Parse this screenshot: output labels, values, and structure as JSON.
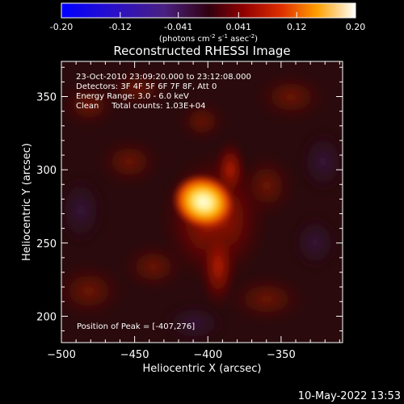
{
  "colorbar": {
    "ticks": [
      "-0.20",
      "-0.12",
      "-0.041",
      "0.041",
      "0.12",
      "0.20"
    ],
    "tick_values": [
      -0.2,
      -0.12,
      -0.041,
      0.041,
      0.12,
      0.2
    ],
    "range": [
      -0.2,
      0.2
    ],
    "units_prefix": "(photons cm",
    "units_exp1": "-2",
    "units_mid": " s",
    "units_exp2": "-1",
    "units_suffix": " asec",
    "units_exp3": "-2",
    "units_close": ")"
  },
  "plot": {
    "title": "Reconstructed RHESSI Image",
    "xlabel": "Heliocentric X (arcsec)",
    "ylabel": "Heliocentric Y (arcsec)",
    "info_lines": [
      "23-Oct-2010 23:09:20.000 to 23:12:08.000",
      "Detectors: 3F 4F 5F 6F 7F 8F, Att 0",
      "Energy Range: 3.0 - 6.0 keV",
      "Clean     Total counts: 1.03E+04"
    ],
    "peak_text": "Position of Peak = [-407,276]"
  },
  "chart_data": {
    "type": "heatmap",
    "title": "Reconstructed RHESSI Image",
    "xlabel": "Heliocentric X (arcsec)",
    "ylabel": "Heliocentric Y (arcsec)",
    "xlim": [
      -500,
      -308
    ],
    "ylim": [
      182,
      374
    ],
    "x_ticks": [
      -500,
      -450,
      -400,
      -350
    ],
    "x_tick_labels": [
      "−500",
      "−450",
      "−400",
      "−350"
    ],
    "y_ticks": [
      200,
      250,
      300,
      350
    ],
    "y_tick_labels": [
      "200",
      "250",
      "300",
      "350"
    ],
    "peak": {
      "x": -407,
      "y": 276,
      "value": 0.2
    },
    "colorscale": "red-temperature",
    "value_range": [
      -0.2,
      0.2
    ]
  },
  "footer": {
    "timestamp": "10-May-2022 13:53"
  }
}
